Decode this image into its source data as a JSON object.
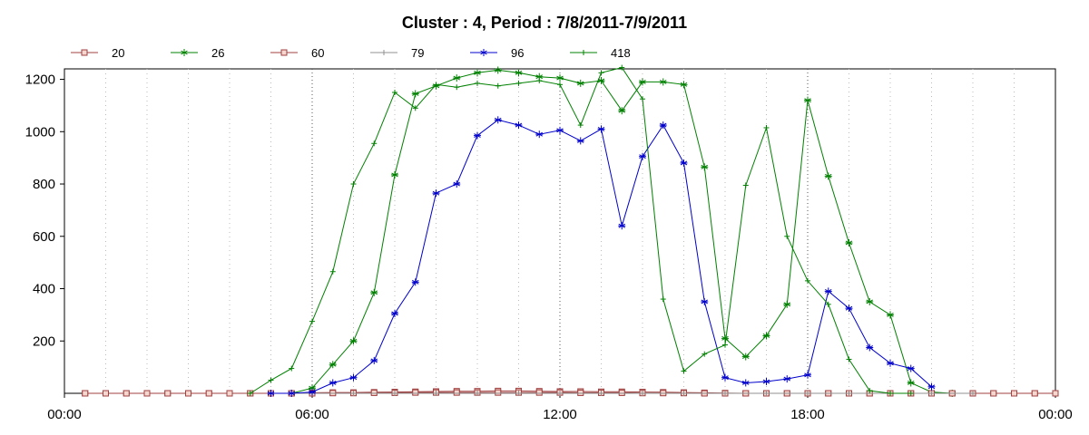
{
  "chart_data": {
    "type": "line",
    "title": "Cluster : 4, Period : 7/8/2011-7/9/2011",
    "xlabel": "",
    "ylabel": "",
    "x_ticks": [
      "00:00",
      "06:00",
      "12:00",
      "18:00",
      "00:00"
    ],
    "y_ticks": [
      "200",
      "400",
      "600",
      "800",
      "1000",
      "1200"
    ],
    "xlim_hours": [
      0,
      24
    ],
    "ylim": [
      0,
      1240
    ],
    "grid": "vertical dotted",
    "legend_position": "top-left",
    "series": [
      {
        "name": "20",
        "color": "#a04040",
        "marker": "square",
        "x": [
          0.5,
          1,
          1.5,
          2,
          2.5,
          3,
          3.5,
          4,
          4.5,
          5,
          5.5,
          6,
          6.5,
          7,
          7.5,
          8,
          8.5,
          9,
          9.5,
          10,
          10.5,
          11,
          11.5,
          12,
          12.5,
          13,
          13.5,
          14,
          14.5,
          15,
          15.5,
          16,
          16.5,
          17,
          17.5,
          18,
          18.5,
          19,
          19.5,
          20,
          20.5,
          21,
          21.5,
          22,
          22.5,
          23,
          23.5,
          24
        ],
        "y": [
          0,
          0,
          0,
          0,
          0,
          0,
          0,
          0,
          0,
          0,
          0,
          2,
          3,
          3,
          4,
          5,
          6,
          7,
          8,
          8,
          9,
          9,
          8,
          7,
          7,
          6,
          6,
          5,
          4,
          3,
          2,
          1,
          0,
          0,
          0,
          0,
          0,
          0,
          0,
          0,
          0,
          0,
          0,
          0,
          0,
          0,
          0,
          0
        ]
      },
      {
        "name": "26",
        "color": "#008000",
        "marker": "asterisk",
        "x": [
          5.5,
          6,
          6.5,
          7,
          7.5,
          8,
          8.5,
          9,
          9.5,
          10,
          10.5,
          11,
          11.5,
          12,
          12.5,
          13,
          13.5,
          14,
          14.5,
          15,
          15.5,
          16,
          16.5,
          17,
          17.5,
          18,
          18.5,
          19,
          19.5,
          20,
          20.5,
          21,
          21.5
        ],
        "y": [
          0,
          20,
          110,
          200,
          385,
          835,
          1145,
          1175,
          1205,
          1225,
          1235,
          1225,
          1210,
          1205,
          1185,
          1195,
          1080,
          1190,
          1190,
          1180,
          865,
          210,
          140,
          220,
          340,
          1120,
          830,
          575,
          350,
          300,
          40,
          5,
          0
        ]
      },
      {
        "name": "60",
        "color": "#a04040",
        "marker": "square",
        "x": [
          0.5,
          1,
          1.5,
          2,
          2.5,
          3,
          3.5,
          4,
          4.5,
          5,
          5.5,
          6,
          6.5,
          7,
          7.5,
          8,
          8.5,
          9,
          9.5,
          10,
          10.5,
          11,
          11.5,
          12,
          12.5,
          13,
          13.5,
          14,
          14.5,
          15,
          15.5,
          16,
          16.5,
          17,
          17.5,
          18,
          18.5,
          19,
          19.5,
          20,
          20.5,
          21,
          21.5,
          22,
          22.5,
          23,
          23.5,
          24
        ],
        "y": [
          0,
          0,
          0,
          0,
          0,
          0,
          0,
          0,
          0,
          0,
          0,
          0,
          1,
          1,
          2,
          2,
          3,
          3,
          3,
          3,
          3,
          3,
          3,
          3,
          2,
          2,
          2,
          1,
          1,
          1,
          0,
          0,
          0,
          0,
          0,
          0,
          0,
          0,
          0,
          0,
          0,
          0,
          0,
          0,
          0,
          0,
          0,
          0
        ]
      },
      {
        "name": "79",
        "color": "#909090",
        "marker": "plus",
        "x": [
          5,
          6,
          7,
          8,
          9,
          10,
          11,
          12,
          13,
          14,
          15,
          16,
          17,
          18,
          19,
          20,
          21,
          22
        ],
        "y": [
          0,
          0,
          0,
          0,
          0,
          0,
          0,
          0,
          0,
          0,
          0,
          0,
          0,
          0,
          0,
          0,
          0,
          0
        ]
      },
      {
        "name": "96",
        "color": "#0000cc",
        "marker": "asterisk",
        "x": [
          5,
          5.5,
          6,
          6.5,
          7,
          7.5,
          8,
          8.5,
          9,
          9.5,
          10,
          10.5,
          11,
          11.5,
          12,
          12.5,
          13,
          13.5,
          14,
          14.5,
          15,
          15.5,
          16,
          16.5,
          17,
          17.5,
          18,
          18.5,
          19,
          19.5,
          20,
          20.5,
          21
        ],
        "y": [
          0,
          0,
          5,
          40,
          60,
          125,
          305,
          425,
          765,
          800,
          985,
          1045,
          1025,
          990,
          1005,
          965,
          1010,
          640,
          905,
          1025,
          880,
          350,
          60,
          40,
          45,
          55,
          70,
          390,
          325,
          175,
          115,
          95,
          25
        ]
      },
      {
        "name": "418",
        "color": "#008000",
        "marker": "plus",
        "x": [
          4.5,
          5,
          5.5,
          6,
          6.5,
          7,
          7.5,
          8,
          8.5,
          9,
          9.5,
          10,
          10.5,
          11,
          11.5,
          12,
          12.5,
          13,
          13.5,
          14,
          14.5,
          15,
          15.5,
          16,
          16.5,
          17,
          17.5,
          18,
          18.5,
          19,
          19.5,
          20,
          20.5
        ],
        "y": [
          0,
          50,
          95,
          275,
          465,
          800,
          955,
          1150,
          1090,
          1180,
          1170,
          1185,
          1175,
          1185,
          1195,
          1180,
          1025,
          1225,
          1245,
          1125,
          360,
          85,
          150,
          185,
          795,
          1015,
          600,
          430,
          340,
          130,
          10,
          0,
          0
        ]
      }
    ]
  }
}
